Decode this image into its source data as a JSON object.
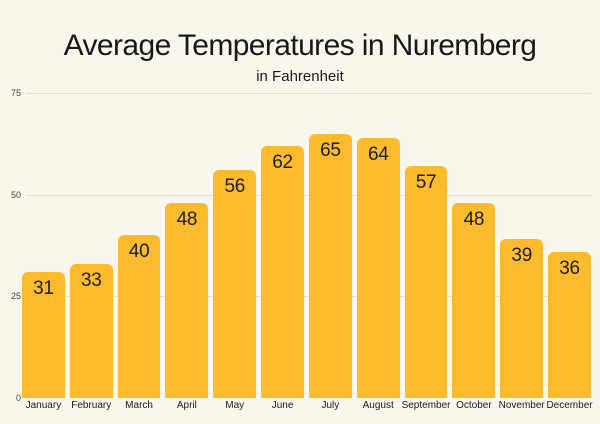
{
  "chart_data": {
    "type": "bar",
    "title": "Average Temperatures in Nuremberg",
    "subtitle": "in Fahrenheit",
    "categories": [
      "January",
      "February",
      "March",
      "April",
      "May",
      "June",
      "July",
      "August",
      "September",
      "October",
      "November",
      "December"
    ],
    "values": [
      31,
      33,
      40,
      48,
      56,
      62,
      65,
      64,
      57,
      48,
      39,
      36
    ],
    "xlabel": "",
    "ylabel": "",
    "ylim": [
      0,
      75
    ],
    "yticks": [
      0,
      25,
      50,
      75
    ],
    "grid": true,
    "legend": false,
    "value_labels_shown": true,
    "colors": {
      "background": "#F9F6EB",
      "bar": "#FBBB2C",
      "gridline": "#E2DFD4",
      "title_text": "#191918",
      "value_label_text": "#1E1E1C",
      "axis_tick_text": "#43433E",
      "month_label_text": "#1B1B19"
    }
  }
}
